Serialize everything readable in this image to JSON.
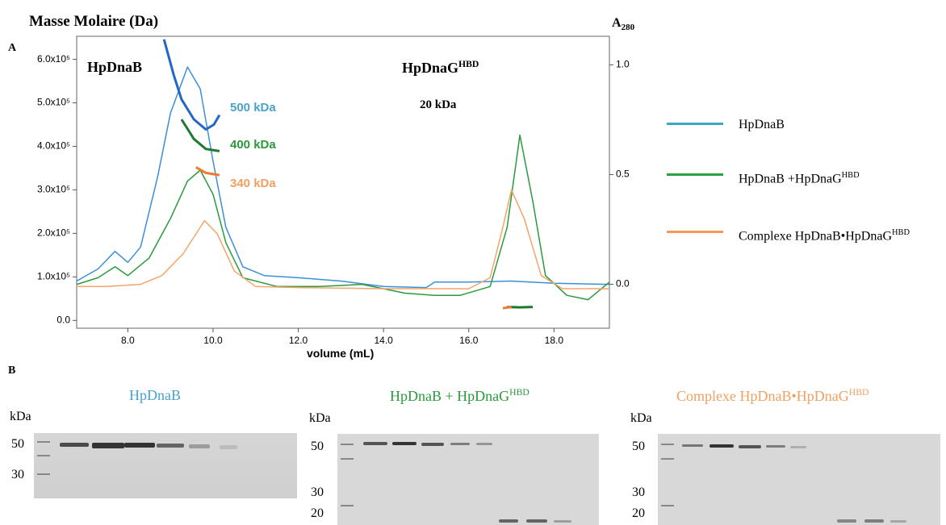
{
  "chart_data": {
    "type": "line",
    "ylabel": "Masse Molaire (Da)",
    "y2label": "A",
    "y2label_sub": "280",
    "xlabel": "volume (mL)",
    "panel": "A",
    "xlim": [
      6.8,
      19.3
    ],
    "ylim": [
      -18000,
      653000
    ],
    "y2lim": [
      -0.2,
      1.13
    ],
    "xticks": [
      {
        "value": 8,
        "label": "8.0"
      },
      {
        "value": 10,
        "label": "10.0"
      },
      {
        "value": 12,
        "label": "12.0"
      },
      {
        "value": 14,
        "label": "14.0"
      },
      {
        "value": 16,
        "label": "16.0"
      },
      {
        "value": 18,
        "label": "18.0"
      }
    ],
    "yticks": [
      {
        "value": 0,
        "label": "0.0"
      },
      {
        "value": 100000,
        "label": "1.0x10⁵"
      },
      {
        "value": 200000,
        "label": "2.0x10⁵"
      },
      {
        "value": 300000,
        "label": "3.0x10⁵"
      },
      {
        "value": 400000,
        "label": "4.0x10⁵"
      },
      {
        "value": 500000,
        "label": "5.0x10⁵"
      },
      {
        "value": 600000,
        "label": "6.0x10⁵"
      }
    ],
    "y2ticks": [
      {
        "value": 0,
        "label": "0.0"
      },
      {
        "value": 0.5,
        "label": "0.5"
      },
      {
        "value": 1,
        "label": "1.0"
      }
    ],
    "series": [
      {
        "name": "HpDnaB",
        "name_sup": "",
        "color": "#3b8fd9",
        "legend_color": "#3aa6c8",
        "axis": "y2",
        "x": [
          6.8,
          7.3,
          7.7,
          8.0,
          8.3,
          8.7,
          9.0,
          9.4,
          9.7,
          10.0,
          10.3,
          10.7,
          11.2,
          12,
          13,
          14,
          15,
          15.2,
          16,
          17,
          18,
          19.3
        ],
        "values": [
          0.015,
          0.07,
          0.15,
          0.1,
          0.17,
          0.49,
          0.78,
          0.99,
          0.89,
          0.56,
          0.26,
          0.08,
          0.04,
          0.03,
          0.015,
          -0.01,
          -0.015,
          0.01,
          0.01,
          0.015,
          0.005,
          0
        ]
      },
      {
        "name": "HpDnaB +HpDnaG",
        "name_sup": "HBD",
        "color": "#2a9a3c",
        "legend_color": "#2aa040",
        "axis": "y2",
        "x": [
          6.8,
          7.3,
          7.7,
          8.0,
          8.5,
          9.0,
          9.4,
          9.7,
          10.0,
          10.3,
          10.7,
          11.5,
          12.5,
          13.5,
          14.5,
          15.2,
          15.8,
          16.5,
          16.9,
          17.2,
          17.5,
          17.8,
          18.3,
          18.8,
          19.3
        ],
        "values": [
          0,
          0.03,
          0.08,
          0.04,
          0.12,
          0.3,
          0.47,
          0.52,
          0.41,
          0.19,
          0.03,
          -0.01,
          -0.01,
          0,
          -0.04,
          -0.05,
          -0.05,
          -0.01,
          0.26,
          0.68,
          0.38,
          0.04,
          -0.05,
          -0.07,
          0.01
        ]
      },
      {
        "name": "Complexe HpDnaB•HpDnaG",
        "name_sup": "HBD",
        "color": "#f5a46a",
        "legend_color": "#f39a5a",
        "axis": "y2",
        "x": [
          6.8,
          7.5,
          8.3,
          8.8,
          9.3,
          9.8,
          10.1,
          10.5,
          11,
          12,
          14,
          16,
          16.5,
          16.8,
          17.0,
          17.3,
          17.7,
          18.2,
          19.3
        ],
        "values": [
          -0.01,
          -0.01,
          0,
          0.04,
          0.14,
          0.29,
          0.23,
          0.06,
          -0.01,
          -0.015,
          -0.02,
          -0.02,
          0.03,
          0.26,
          0.43,
          0.3,
          0.04,
          -0.02,
          -0.02
        ]
      },
      {
        "color": "#2466c4",
        "axis": "y",
        "x": [
          8.85,
          9.08,
          9.26,
          9.55,
          9.83,
          10.02,
          10.15
        ],
        "values": [
          646000,
          563000,
          508000,
          462000,
          439000,
          450000,
          472000
        ]
      },
      {
        "color": "#1e7a2e",
        "axis": "y",
        "x": [
          9.26,
          9.55,
          9.83,
          10.15,
          null,
          16.9,
          17.2,
          17.5
        ],
        "values": [
          462000,
          417000,
          394000,
          389000,
          null,
          31000,
          30000,
          31000
        ]
      },
      {
        "color": "#f07a30",
        "axis": "y",
        "x": [
          9.6,
          9.83,
          10.15,
          null,
          16.8,
          17.0
        ],
        "values": [
          352000,
          339000,
          334000,
          null,
          28000,
          31000
        ]
      }
    ],
    "annotations": [
      {
        "text": "HpDnaB",
        "sup": "",
        "color": "#000000"
      },
      {
        "text": "HpDnaG",
        "sup": "HBD",
        "color": "#000000"
      },
      {
        "text": "20 kDa",
        "sup": "",
        "color": "#000000"
      },
      {
        "text": "500 kDa",
        "sup": "",
        "color": "#4aa3c8"
      },
      {
        "text": "400 kDa",
        "sup": "",
        "color": "#2a9a3a"
      },
      {
        "text": "340 kDa",
        "sup": "",
        "color": "#f0a060"
      }
    ]
  },
  "gels": {
    "panel": "B",
    "lanes": [
      {
        "title": "HpDnaB",
        "title_sup": "",
        "color": "#4aa3c8",
        "unit": "kDa",
        "markers": [
          "50",
          "30"
        ]
      },
      {
        "title": "HpDnaB + HpDnaG",
        "title_sup": "HBD",
        "color": "#2a9a3a",
        "unit": "kDa",
        "markers": [
          "50",
          "30",
          "20"
        ]
      },
      {
        "title": "Complexe HpDnaB•HpDnaG",
        "title_sup": "HBD",
        "color": "#f0a060",
        "unit": "kDa",
        "markers": [
          "50",
          "30",
          "20"
        ]
      }
    ]
  }
}
